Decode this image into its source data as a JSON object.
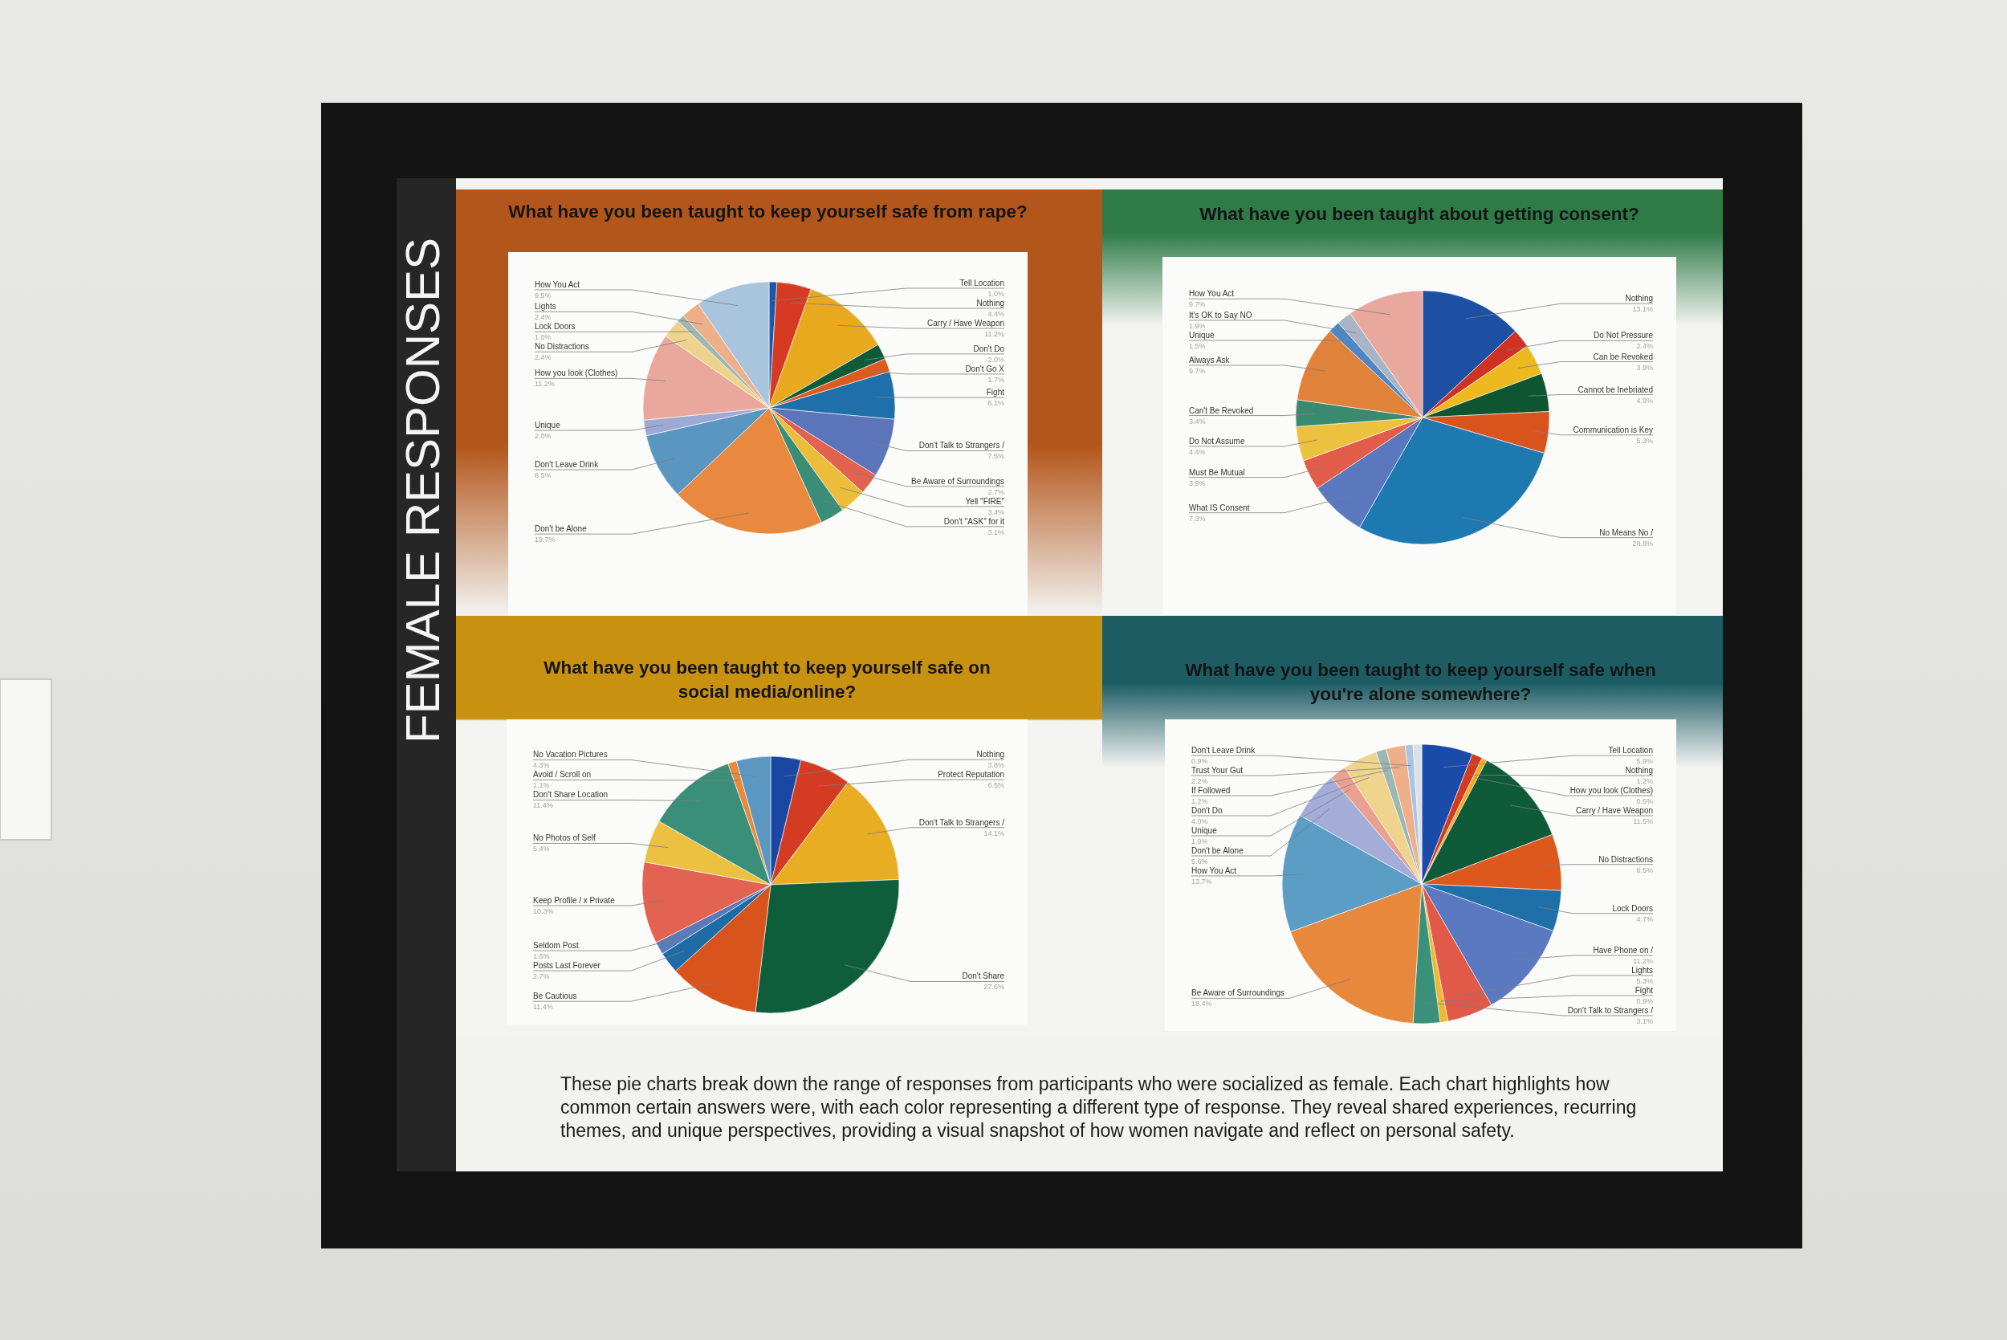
{
  "chart_data": [
    {
      "type": "other",
      "title": "FEMALE RESPONSES",
      "annotations": [
        "These pie charts break down the range of responses from participants who were socialized as female. Each chart highlights how common certain answers were, with each color representing a different type of response. They reveal shared experiences, recurring themes, and unique perspectives, providing a visual snapshot of how women navigate and reflect on personal safety."
      ]
    },
    {
      "type": "pie",
      "title": "What have you been taught to keep yourself safe from rape?",
      "categories": [
        "Tell Location",
        "Nothing",
        "Carry / Have Weapon",
        "Don't Do",
        "Don't Go X",
        "Fight",
        "Don't Talk to Strangers /",
        "Be Aware of Surroundings",
        "Yell \"FIRE\"",
        "Don't \"ASK\" for it",
        "Don't be Alone",
        "Don't Leave Drink",
        "Unique",
        "How you look (Clothes)",
        "No Distractions",
        "Lock Doors",
        "Lights",
        "How You Act"
      ],
      "values": [
        1.0,
        4.4,
        11.2,
        2.0,
        1.7,
        6.1,
        7.5,
        2.7,
        3.4,
        3.1,
        19.7,
        8.5,
        2.0,
        11.2,
        2.4,
        1.0,
        2.4,
        9.5
      ],
      "value_labels": [
        "1.0%",
        "4.4%",
        "11.2%",
        "2.0%",
        "1.7%",
        "6.1%",
        "7.5%",
        "2.7%",
        "3.4%",
        "3.1%",
        "19.7%",
        "8.5%",
        "2.0%",
        "11.2%",
        "2.4%",
        "1.0%",
        "2.4%",
        "9.5%"
      ],
      "colors": [
        "#1d58a6",
        "#d63a22",
        "#e9a91f",
        "#0f5b39",
        "#de5a1e",
        "#1f70aa",
        "#5b74ba",
        "#e0624f",
        "#ebbd3a",
        "#3a8e77",
        "#e9883f",
        "#5a96c0",
        "#9eaad6",
        "#eaa89c",
        "#eed38c",
        "#9db8b3",
        "#eeb08b",
        "#a9c5de"
      ]
    },
    {
      "type": "pie",
      "title": "What have you been taught about getting consent?",
      "categories": [
        "Nothing",
        "Do Not Pressure",
        "Can be Revoked",
        "Cannot be Inebriated",
        "Communication is Key",
        "No Means No /",
        "What IS Consent",
        "Must Be Mutual",
        "Do Not Assume",
        "Can't Be Revoked",
        "Always Ask",
        "Unique",
        "It's OK to Say NO",
        "How You Act"
      ],
      "values": [
        13.1,
        2.4,
        3.9,
        4.9,
        5.3,
        28.8,
        7.3,
        3.9,
        4.4,
        3.4,
        9.7,
        1.5,
        1.9,
        9.7
      ],
      "value_labels": [
        "13.1%",
        "2.4%",
        "3.9%",
        "4.9%",
        "5.3%",
        "28.8%",
        "7.3%",
        "3.9%",
        "4.4%",
        "3.4%",
        "9.7%",
        "1.5%",
        "1.9%",
        "9.7%"
      ],
      "colors": [
        "#1d4fa3",
        "#cf3222",
        "#edb91f",
        "#0f5532",
        "#d9531c",
        "#1f79b1",
        "#5b77bd",
        "#e25c4a",
        "#ecc13d",
        "#3a8a70",
        "#e0823a",
        "#4f87c5",
        "#a9b5c4",
        "#e9a89d"
      ]
    },
    {
      "type": "pie",
      "title": "What have you been taught to keep yourself safe on social media/online?",
      "categories": [
        "Nothing",
        "Protect Reputation",
        "Don't Talk to Strangers /",
        "Don't Share",
        "Be Cautious",
        "Posts Last Forever",
        "Seldom Post",
        "Keep Profile / x Private",
        "No Photos of Self",
        "Don't Share Location",
        "Avoid / Scroll on",
        "No Vacation Pictures"
      ],
      "values": [
        3.8,
        6.5,
        14.1,
        27.6,
        11.4,
        2.7,
        1.6,
        10.3,
        5.4,
        11.4,
        1.1,
        4.3
      ],
      "value_labels": [
        "3.8%",
        "6.5%",
        "14.1%",
        "27.6%",
        "11.4%",
        "2.7%",
        "1.6%",
        "10.3%",
        "5.4%",
        "11.4%",
        "1.1%",
        "4.3%"
      ],
      "colors": [
        "#1a47a1",
        "#d33b23",
        "#e9ad23",
        "#0e5e3c",
        "#d9531c",
        "#1f6ba5",
        "#5a7bb9",
        "#e26352",
        "#ecc141",
        "#3a8f79",
        "#e8893b",
        "#5c97c1"
      ]
    },
    {
      "type": "pie",
      "title": "What have you been taught to keep yourself safe when you're alone somewhere?",
      "categories": [
        "Tell Location",
        "Nothing",
        "How you look (Clothes)",
        "Carry / Have Weapon",
        "No Distractions",
        "Lock Doors",
        "Have Phone on /",
        "Lights",
        "Fight",
        "Don't Talk to Strangers /",
        "Be Aware of Surroundings",
        "How You Act",
        "Don't be Alone",
        "Unique",
        "Don't Do",
        "If Followed",
        "Trust Your Gut",
        "Don't Leave Drink",
        null
      ],
      "values": [
        5.9,
        1.2,
        0.6,
        11.5,
        6.5,
        4.7,
        11.2,
        5.3,
        0.9,
        3.1,
        18.4,
        13.7,
        5.6,
        1.9,
        4.0,
        1.2,
        2.2,
        0.9,
        1.0
      ],
      "value_labels": [
        "5.9%",
        "1.2%",
        "0.6%",
        "11.5%",
        "6.5%",
        "4.7%",
        "11.2%",
        "5.3%",
        "0.9%",
        "3.1%",
        "18.4%",
        "13.7%",
        "5.6%",
        "1.9%",
        "4.0%",
        "1.2%",
        "2.2%",
        "0.9%",
        null
      ],
      "colors": [
        "#1b4ba8",
        "#d33b21",
        "#efab22",
        "#0f5a39",
        "#de571d",
        "#1f6fa9",
        "#5b79c0",
        "#e05949",
        "#eeb932",
        "#3a9079",
        "#e8883d",
        "#5b9dc5",
        "#a3add8",
        "#e9a191",
        "#efd48d",
        "#9bb8b4",
        "#eeaf8b",
        "#a9c5e1",
        "#dde1e7"
      ]
    }
  ]
}
